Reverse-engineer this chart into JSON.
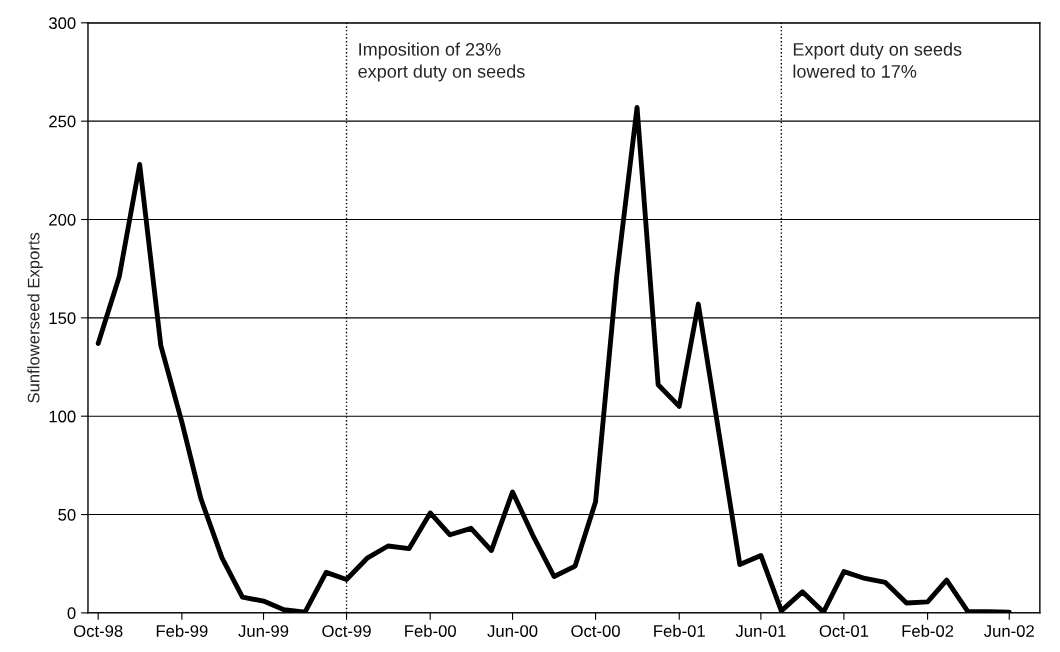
{
  "chart_data": {
    "type": "line",
    "ylabel": "Sunflowerseed Exports",
    "x": [
      "1998-10",
      "1998-11",
      "1998-12",
      "1999-01",
      "1999-02",
      "1999-03",
      "1999-04",
      "1999-05",
      "1999-06",
      "1999-07",
      "1999-08",
      "1999-09",
      "1999-10",
      "1999-11",
      "1999-12",
      "2000-01",
      "2000-02",
      "2000-03",
      "2000-04",
      "2000-05",
      "2000-06",
      "2000-07",
      "2000-08",
      "2000-09",
      "2000-10",
      "2000-11",
      "2000-12",
      "2001-01",
      "2001-02",
      "2001-03",
      "2001-04",
      "2001-05",
      "2001-06",
      "2001-07",
      "2001-08",
      "2001-09",
      "2001-10",
      "2001-11",
      "2001-12",
      "2002-01",
      "2002-02",
      "2002-03",
      "2002-04",
      "2002-05",
      "2002-06"
    ],
    "series": [
      {
        "color": "#000000",
        "values": [
          137,
          171,
          228,
          136,
          97,
          58,
          28,
          8,
          6,
          1.6,
          0.4,
          20.6,
          17,
          28,
          34,
          32.7,
          50.8,
          39.7,
          43,
          31.7,
          61.5,
          39.3,
          18.5,
          23.8,
          56.5,
          171,
          257,
          116,
          105,
          157,
          90,
          24.6,
          29.2,
          1,
          10.7,
          0.4,
          21,
          17.5,
          15.5,
          5,
          5.6,
          16.7,
          0.8,
          0.6,
          0.4
        ]
      }
    ],
    "xlim": [
      "1998-09-16",
      "2002-07-16"
    ],
    "xticks": [
      {
        "value": "1998-10",
        "label": "Oct-98"
      },
      {
        "value": "1999-02",
        "label": "Feb-99"
      },
      {
        "value": "1999-06",
        "label": "Jun-99"
      },
      {
        "value": "1999-10",
        "label": "Oct-99"
      },
      {
        "value": "2000-02",
        "label": "Feb-00"
      },
      {
        "value": "2000-06",
        "label": "Jun-00"
      },
      {
        "value": "2000-10",
        "label": "Oct-00"
      },
      {
        "value": "2001-02",
        "label": "Feb-01"
      },
      {
        "value": "2001-06",
        "label": "Jun-01"
      },
      {
        "value": "2001-10",
        "label": "Oct-01"
      },
      {
        "value": "2002-02",
        "label": "Feb-02"
      },
      {
        "value": "2002-06",
        "label": "Jun-02"
      }
    ],
    "ylim": [
      0,
      300
    ],
    "yticks": [
      0,
      50,
      100,
      150,
      200,
      250,
      300
    ],
    "grid": "y",
    "marker": "none",
    "line_style": "solid",
    "ref_lines": [
      {
        "axis": "x",
        "value": "1999-10",
        "color": "#000000",
        "line_style": "dotted"
      },
      {
        "axis": "x",
        "value": "2001-07",
        "color": "#000000",
        "line_style": "dotted"
      }
    ],
    "annotations": [
      {
        "text": "Imposition of 23%\nexport duty on seeds",
        "x": "1999-10",
        "y": 290
      },
      {
        "text": "Export duty on seeds\nlowered to 17%",
        "x": "2001-07",
        "y": 290
      }
    ]
  }
}
